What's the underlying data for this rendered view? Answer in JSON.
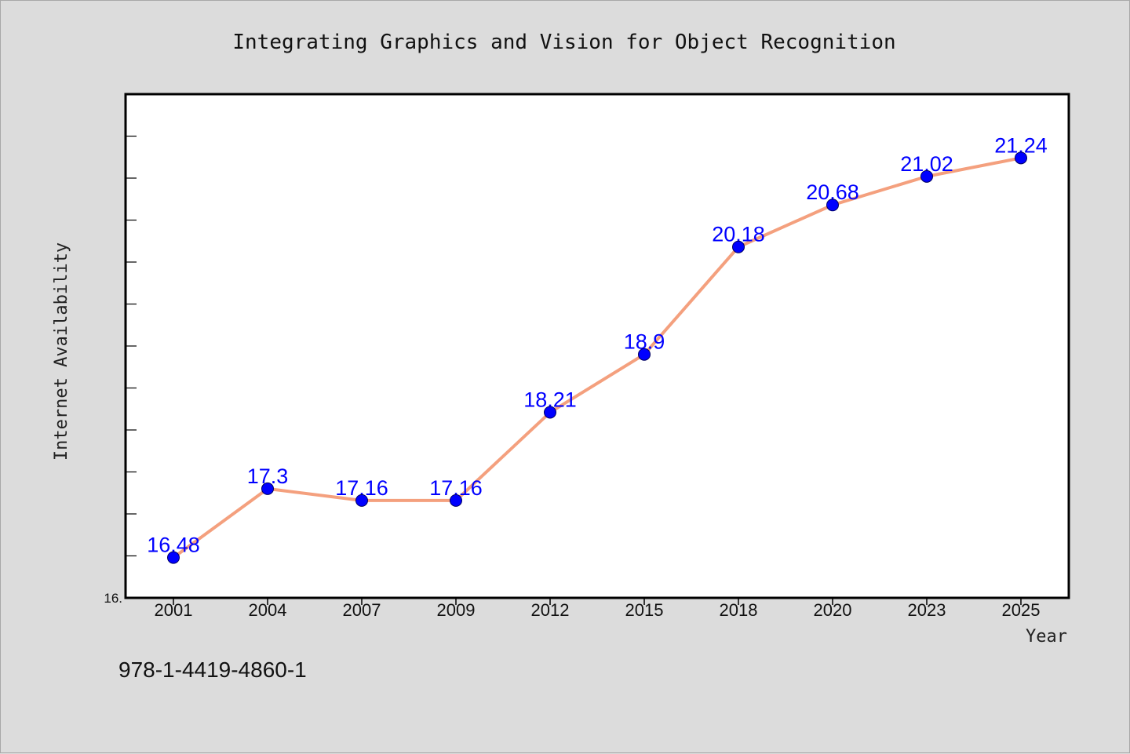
{
  "chart_data": {
    "type": "line",
    "title": "Integrating Graphics and Vision for Object Recognition",
    "xlabel": "Year",
    "ylabel": "Internet Availability",
    "categories": [
      "2001",
      "2004",
      "2007",
      "2009",
      "2012",
      "2015",
      "2018",
      "2020",
      "2023",
      "2025"
    ],
    "series": [
      {
        "values": [
          16.48,
          17.3,
          17.16,
          17.16,
          18.21,
          18.9,
          20.18,
          20.68,
          21.02,
          21.24
        ],
        "data_labels": [
          "16.48",
          "17.3",
          "17.16",
          "17.16",
          "18.21",
          "18.9",
          "20.18",
          "20.68",
          "21.02",
          "21.24"
        ]
      }
    ],
    "ylim": [
      16.0,
      22.0
    ],
    "y_tick_label": "16.",
    "grid": false,
    "legend": "none",
    "colors": {
      "line": "#f4a07e",
      "marker": "#0000ff",
      "data_label": "#0000ff",
      "plot_background": "#ffffff",
      "figure_background": "#dcdcdc"
    }
  },
  "footer": {
    "isbn": "978-1-4419-4860-1"
  }
}
